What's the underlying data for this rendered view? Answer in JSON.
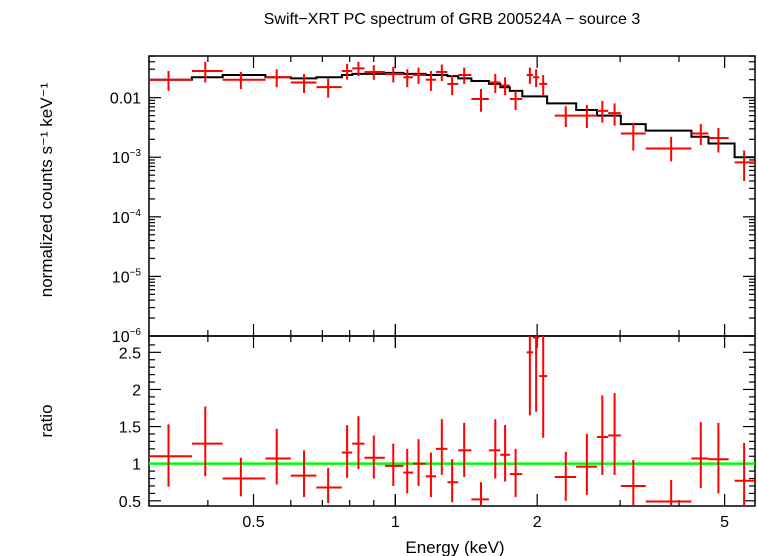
{
  "chart_data": [
    {
      "type": "scatter",
      "title": "Swift−XRT PC spectrum of GRB 200524A − source 3",
      "ylabel": "normalized counts s⁻¹ keV⁻¹",
      "xscale": "log",
      "yscale": "log",
      "xlim": [
        0.3,
        5.8
      ],
      "ylim": [
        1e-06,
        0.05
      ],
      "yticks": [
        {
          "value": 0.01,
          "base": "0.01",
          "exp": ""
        },
        {
          "value": 0.001,
          "base": "10",
          "exp": "−3"
        },
        {
          "value": 0.0001,
          "base": "10",
          "exp": "−4"
        },
        {
          "value": 1e-05,
          "base": "10",
          "exp": "−5"
        },
        {
          "value": 1e-06,
          "base": "10",
          "exp": "−6"
        }
      ],
      "series": [
        {
          "kind": "data",
          "color": "#ff0000",
          "points": [
            {
              "x": 0.33,
              "xlo": 0.3,
              "xhi": 0.37,
              "y": 0.02,
              "ylo": 0.013,
              "yhi": 0.028
            },
            {
              "x": 0.395,
              "xlo": 0.37,
              "xhi": 0.43,
              "y": 0.028,
              "ylo": 0.018,
              "yhi": 0.04
            },
            {
              "x": 0.47,
              "xlo": 0.43,
              "xhi": 0.53,
              "y": 0.02,
              "ylo": 0.014,
              "yhi": 0.027
            },
            {
              "x": 0.56,
              "xlo": 0.53,
              "xhi": 0.6,
              "y": 0.022,
              "ylo": 0.015,
              "yhi": 0.03
            },
            {
              "x": 0.64,
              "xlo": 0.6,
              "xhi": 0.68,
              "y": 0.018,
              "ylo": 0.012,
              "yhi": 0.025
            },
            {
              "x": 0.72,
              "xlo": 0.68,
              "xhi": 0.77,
              "y": 0.015,
              "ylo": 0.01,
              "yhi": 0.021
            },
            {
              "x": 0.79,
              "xlo": 0.77,
              "xhi": 0.81,
              "y": 0.028,
              "ylo": 0.02,
              "yhi": 0.037
            },
            {
              "x": 0.835,
              "xlo": 0.81,
              "xhi": 0.86,
              "y": 0.031,
              "ylo": 0.023,
              "yhi": 0.04
            },
            {
              "x": 0.9,
              "xlo": 0.86,
              "xhi": 0.95,
              "y": 0.027,
              "ylo": 0.02,
              "yhi": 0.035
            },
            {
              "x": 0.99,
              "xlo": 0.95,
              "xhi": 1.04,
              "y": 0.025,
              "ylo": 0.018,
              "yhi": 0.033
            },
            {
              "x": 1.06,
              "xlo": 1.04,
              "xhi": 1.09,
              "y": 0.022,
              "ylo": 0.015,
              "yhi": 0.03
            },
            {
              "x": 1.12,
              "xlo": 1.09,
              "xhi": 1.16,
              "y": 0.024,
              "ylo": 0.017,
              "yhi": 0.032
            },
            {
              "x": 1.19,
              "xlo": 1.16,
              "xhi": 1.22,
              "y": 0.02,
              "ylo": 0.013,
              "yhi": 0.028
            },
            {
              "x": 1.255,
              "xlo": 1.22,
              "xhi": 1.29,
              "y": 0.027,
              "ylo": 0.019,
              "yhi": 0.036
            },
            {
              "x": 1.32,
              "xlo": 1.29,
              "xhi": 1.36,
              "y": 0.017,
              "ylo": 0.011,
              "yhi": 0.024
            },
            {
              "x": 1.4,
              "xlo": 1.36,
              "xhi": 1.45,
              "y": 0.024,
              "ylo": 0.017,
              "yhi": 0.032
            },
            {
              "x": 1.52,
              "xlo": 1.45,
              "xhi": 1.58,
              "y": 0.0095,
              "ylo": 0.0058,
              "yhi": 0.014
            },
            {
              "x": 1.63,
              "xlo": 1.58,
              "xhi": 1.67,
              "y": 0.018,
              "ylo": 0.012,
              "yhi": 0.025
            },
            {
              "x": 1.71,
              "xlo": 1.67,
              "xhi": 1.75,
              "y": 0.016,
              "ylo": 0.011,
              "yhi": 0.022
            },
            {
              "x": 1.8,
              "xlo": 1.75,
              "xhi": 1.86,
              "y": 0.0095,
              "ylo": 0.0062,
              "yhi": 0.013
            },
            {
              "x": 1.93,
              "xlo": 1.9,
              "xhi": 1.96,
              "y": 0.024,
              "ylo": 0.017,
              "yhi": 0.032
            },
            {
              "x": 1.99,
              "xlo": 1.96,
              "xhi": 2.02,
              "y": 0.022,
              "ylo": 0.015,
              "yhi": 0.03
            },
            {
              "x": 2.06,
              "xlo": 2.02,
              "xhi": 2.1,
              "y": 0.017,
              "ylo": 0.011,
              "yhi": 0.024
            },
            {
              "x": 2.3,
              "xlo": 2.18,
              "xhi": 2.42,
              "y": 0.005,
              "ylo": 0.0032,
              "yhi": 0.0072
            },
            {
              "x": 2.55,
              "xlo": 2.42,
              "xhi": 2.68,
              "y": 0.005,
              "ylo": 0.0031,
              "yhi": 0.0075
            },
            {
              "x": 2.75,
              "xlo": 2.68,
              "xhi": 2.83,
              "y": 0.006,
              "ylo": 0.0038,
              "yhi": 0.0088
            },
            {
              "x": 2.92,
              "xlo": 2.83,
              "xhi": 3.01,
              "y": 0.0055,
              "ylo": 0.0034,
              "yhi": 0.008
            },
            {
              "x": 3.2,
              "xlo": 3.01,
              "xhi": 3.4,
              "y": 0.0025,
              "ylo": 0.0013,
              "yhi": 0.0038
            },
            {
              "x": 3.85,
              "xlo": 3.4,
              "xhi": 4.25,
              "y": 0.0014,
              "ylo": 0.00085,
              "yhi": 0.0022
            },
            {
              "x": 4.45,
              "xlo": 4.25,
              "xhi": 4.62,
              "y": 0.0025,
              "ylo": 0.0016,
              "yhi": 0.0036
            },
            {
              "x": 4.85,
              "xlo": 4.62,
              "xhi": 5.1,
              "y": 0.0021,
              "ylo": 0.0012,
              "yhi": 0.0031
            },
            {
              "x": 5.5,
              "xlo": 5.25,
              "xhi": 5.8,
              "y": 0.00082,
              "ylo": 0.0004,
              "yhi": 0.0013
            }
          ]
        },
        {
          "kind": "model",
          "color": "#000000",
          "step": true,
          "bins": [
            {
              "xlo": 0.3,
              "xhi": 0.37,
              "y": 0.02
            },
            {
              "xlo": 0.37,
              "xhi": 0.43,
              "y": 0.022
            },
            {
              "xlo": 0.43,
              "xhi": 0.53,
              "y": 0.024
            },
            {
              "xlo": 0.53,
              "xhi": 0.6,
              "y": 0.022
            },
            {
              "xlo": 0.6,
              "xhi": 0.68,
              "y": 0.021
            },
            {
              "xlo": 0.68,
              "xhi": 0.77,
              "y": 0.022
            },
            {
              "xlo": 0.77,
              "xhi": 0.81,
              "y": 0.024
            },
            {
              "xlo": 0.81,
              "xhi": 0.86,
              "y": 0.025
            },
            {
              "xlo": 0.86,
              "xhi": 0.95,
              "y": 0.025
            },
            {
              "xlo": 0.95,
              "xhi": 1.04,
              "y": 0.026
            },
            {
              "xlo": 1.04,
              "xhi": 1.09,
              "y": 0.025
            },
            {
              "xlo": 1.09,
              "xhi": 1.16,
              "y": 0.025
            },
            {
              "xlo": 1.16,
              "xhi": 1.22,
              "y": 0.024
            },
            {
              "xlo": 1.22,
              "xhi": 1.29,
              "y": 0.024
            },
            {
              "xlo": 1.29,
              "xhi": 1.36,
              "y": 0.023
            },
            {
              "xlo": 1.36,
              "xhi": 1.45,
              "y": 0.021
            },
            {
              "xlo": 1.45,
              "xhi": 1.58,
              "y": 0.019
            },
            {
              "xlo": 1.58,
              "xhi": 1.67,
              "y": 0.017
            },
            {
              "xlo": 1.67,
              "xhi": 1.75,
              "y": 0.015
            },
            {
              "xlo": 1.75,
              "xhi": 1.86,
              "y": 0.013
            },
            {
              "xlo": 1.86,
              "xhi": 2.1,
              "y": 0.0105
            },
            {
              "xlo": 2.1,
              "xhi": 2.42,
              "y": 0.008
            },
            {
              "xlo": 2.42,
              "xhi": 2.68,
              "y": 0.0062
            },
            {
              "xlo": 2.68,
              "xhi": 3.01,
              "y": 0.005
            },
            {
              "xlo": 3.01,
              "xhi": 3.4,
              "y": 0.0036
            },
            {
              "xlo": 3.4,
              "xhi": 4.25,
              "y": 0.0028
            },
            {
              "xlo": 4.25,
              "xhi": 4.62,
              "y": 0.0022
            },
            {
              "xlo": 4.62,
              "xhi": 5.25,
              "y": 0.0017
            },
            {
              "xlo": 5.25,
              "xhi": 5.8,
              "y": 0.001
            }
          ]
        }
      ]
    },
    {
      "type": "scatter",
      "xlabel": "Energy (keV)",
      "ylabel": "ratio",
      "xscale": "log",
      "xlim": [
        0.3,
        5.8
      ],
      "ylim": [
        0.43,
        2.72
      ],
      "xticks": [
        {
          "value": 0.5,
          "label": "0.5"
        },
        {
          "value": 1,
          "label": "1"
        },
        {
          "value": 2,
          "label": "2"
        },
        {
          "value": 5,
          "label": "5"
        }
      ],
      "yticks": [
        {
          "value": 0.5,
          "label": "0.5"
        },
        {
          "value": 1,
          "label": "1"
        },
        {
          "value": 1.5,
          "label": "1.5"
        },
        {
          "value": 2,
          "label": "2"
        },
        {
          "value": 2.5,
          "label": "2.5"
        }
      ],
      "reference_line": {
        "y": 1,
        "color": "#00ff00"
      },
      "series": [
        {
          "kind": "data",
          "color": "#ff0000",
          "points": [
            {
              "x": 0.33,
              "xlo": 0.3,
              "xhi": 0.37,
              "y": 1.1,
              "ylo": 0.69,
              "yhi": 1.53
            },
            {
              "x": 0.395,
              "xlo": 0.37,
              "xhi": 0.43,
              "y": 1.27,
              "ylo": 0.83,
              "yhi": 1.77
            },
            {
              "x": 0.47,
              "xlo": 0.43,
              "xhi": 0.53,
              "y": 0.8,
              "ylo": 0.56,
              "yhi": 1.08
            },
            {
              "x": 0.56,
              "xlo": 0.53,
              "xhi": 0.6,
              "y": 1.07,
              "ylo": 0.72,
              "yhi": 1.47
            },
            {
              "x": 0.64,
              "xlo": 0.6,
              "xhi": 0.68,
              "y": 0.84,
              "ylo": 0.55,
              "yhi": 1.18
            },
            {
              "x": 0.72,
              "xlo": 0.68,
              "xhi": 0.77,
              "y": 0.68,
              "ylo": 0.47,
              "yhi": 0.94
            },
            {
              "x": 0.79,
              "xlo": 0.77,
              "xhi": 0.81,
              "y": 1.15,
              "ylo": 0.81,
              "yhi": 1.52
            },
            {
              "x": 0.835,
              "xlo": 0.81,
              "xhi": 0.86,
              "y": 1.27,
              "ylo": 0.93,
              "yhi": 1.64
            },
            {
              "x": 0.9,
              "xlo": 0.86,
              "xhi": 0.95,
              "y": 1.08,
              "ylo": 0.8,
              "yhi": 1.38
            },
            {
              "x": 0.99,
              "xlo": 0.95,
              "xhi": 1.04,
              "y": 0.97,
              "ylo": 0.7,
              "yhi": 1.27
            },
            {
              "x": 1.06,
              "xlo": 1.04,
              "xhi": 1.09,
              "y": 0.88,
              "ylo": 0.6,
              "yhi": 1.2
            },
            {
              "x": 1.12,
              "xlo": 1.09,
              "xhi": 1.16,
              "y": 1.0,
              "ylo": 0.7,
              "yhi": 1.33
            },
            {
              "x": 1.19,
              "xlo": 1.16,
              "xhi": 1.22,
              "y": 0.83,
              "ylo": 0.55,
              "yhi": 1.15
            },
            {
              "x": 1.255,
              "xlo": 1.22,
              "xhi": 1.29,
              "y": 1.2,
              "ylo": 0.85,
              "yhi": 1.6
            },
            {
              "x": 1.32,
              "xlo": 1.29,
              "xhi": 1.36,
              "y": 0.75,
              "ylo": 0.48,
              "yhi": 1.06
            },
            {
              "x": 1.4,
              "xlo": 1.36,
              "xhi": 1.45,
              "y": 1.18,
              "ylo": 0.82,
              "yhi": 1.55
            },
            {
              "x": 1.52,
              "xlo": 1.45,
              "xhi": 1.58,
              "y": 0.52,
              "ylo": 0.43,
              "yhi": 0.75
            },
            {
              "x": 1.63,
              "xlo": 1.58,
              "xhi": 1.67,
              "y": 1.18,
              "ylo": 0.8,
              "yhi": 1.6
            },
            {
              "x": 1.71,
              "xlo": 1.67,
              "xhi": 1.75,
              "y": 1.12,
              "ylo": 0.76,
              "yhi": 1.52
            },
            {
              "x": 1.8,
              "xlo": 1.75,
              "xhi": 1.86,
              "y": 0.86,
              "ylo": 0.55,
              "yhi": 1.2
            },
            {
              "x": 1.93,
              "xlo": 1.9,
              "xhi": 1.96,
              "y": 2.5,
              "ylo": 1.65,
              "yhi": 2.72
            },
            {
              "x": 1.99,
              "xlo": 1.96,
              "xhi": 2.02,
              "y": 2.7,
              "ylo": 1.7,
              "yhi": 2.72
            },
            {
              "x": 2.06,
              "xlo": 2.02,
              "xhi": 2.1,
              "y": 2.18,
              "ylo": 1.35,
              "yhi": 2.72
            },
            {
              "x": 2.3,
              "xlo": 2.18,
              "xhi": 2.42,
              "y": 0.82,
              "ylo": 0.5,
              "yhi": 1.16
            },
            {
              "x": 2.55,
              "xlo": 2.42,
              "xhi": 2.68,
              "y": 0.96,
              "ylo": 0.58,
              "yhi": 1.4
            },
            {
              "x": 2.75,
              "xlo": 2.68,
              "xhi": 2.83,
              "y": 1.36,
              "ylo": 0.85,
              "yhi": 1.92
            },
            {
              "x": 2.92,
              "xlo": 2.83,
              "xhi": 3.01,
              "y": 1.38,
              "ylo": 0.85,
              "yhi": 1.95
            },
            {
              "x": 3.2,
              "xlo": 3.01,
              "xhi": 3.4,
              "y": 0.7,
              "ylo": 0.43,
              "yhi": 1.05
            },
            {
              "x": 3.85,
              "xlo": 3.4,
              "xhi": 4.25,
              "y": 0.49,
              "ylo": 0.43,
              "yhi": 0.78
            },
            {
              "x": 4.45,
              "xlo": 4.25,
              "xhi": 4.62,
              "y": 1.07,
              "ylo": 0.67,
              "yhi": 1.56
            },
            {
              "x": 4.85,
              "xlo": 4.62,
              "xhi": 5.1,
              "y": 1.06,
              "ylo": 0.6,
              "yhi": 1.55
            },
            {
              "x": 5.5,
              "xlo": 5.25,
              "xhi": 5.8,
              "y": 0.77,
              "ylo": 0.43,
              "yhi": 1.28
            }
          ]
        }
      ]
    }
  ]
}
